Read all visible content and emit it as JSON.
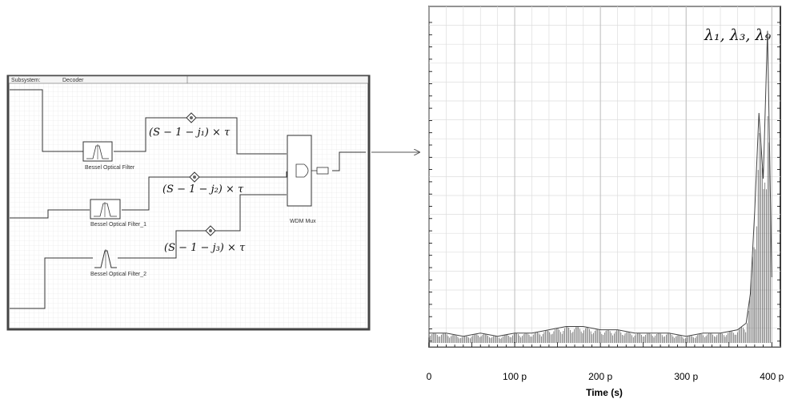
{
  "subsystem": {
    "label": "Subsystem:",
    "name": "Decoder"
  },
  "blocks": [
    {
      "id": "filter0",
      "label": "Bessel Optical Filter"
    },
    {
      "id": "filter1",
      "label": "Bessel Optical Filter_1"
    },
    {
      "id": "filter2",
      "label": "Bessel Optical Filter_2"
    },
    {
      "id": "mux",
      "label": "WDM Mux"
    }
  ],
  "delays": [
    {
      "label": "(S − 1 − j₁) × τ"
    },
    {
      "label": "(S − 1 − j₂) × τ"
    },
    {
      "label": "(S − 1 − j₃) × τ"
    }
  ],
  "chart_data": {
    "type": "line",
    "title": "",
    "annotation": "λ₁, λ₃, λ₉",
    "xlabel": "Time (s)",
    "ylabel": "",
    "xlim": [
      0,
      400
    ],
    "x_ticks": [
      "0",
      "100 p",
      "200 p",
      "300 p",
      "400 p"
    ],
    "grid": true,
    "series": [
      {
        "x": [
          0,
          20,
          40,
          60,
          80,
          100,
          120,
          140,
          160,
          180,
          200,
          220,
          240,
          260,
          280,
          300,
          320,
          340,
          360,
          370,
          375,
          380,
          385,
          390,
          395,
          400
        ],
        "y": [
          0.03,
          0.03,
          0.02,
          0.03,
          0.02,
          0.03,
          0.03,
          0.04,
          0.05,
          0.05,
          0.04,
          0.04,
          0.03,
          0.03,
          0.03,
          0.02,
          0.03,
          0.03,
          0.04,
          0.06,
          0.15,
          0.4,
          0.7,
          0.5,
          0.95,
          0.2
        ]
      }
    ]
  }
}
